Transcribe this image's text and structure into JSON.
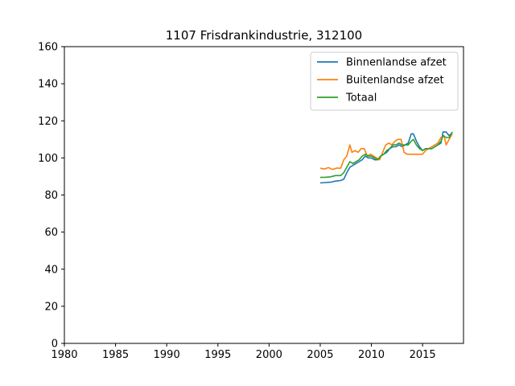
{
  "chart_data": {
    "type": "line",
    "title": "1107 Frisdrankindustrie, 312100",
    "xlabel": "",
    "ylabel": "",
    "xlim": [
      1980,
      2019
    ],
    "ylim": [
      0,
      160
    ],
    "xticks": [
      "1980",
      "1985",
      "1990",
      "1995",
      "2000",
      "2005",
      "2010",
      "2015"
    ],
    "yticks": [
      "0",
      "20",
      "40",
      "60",
      "80",
      "100",
      "120",
      "140",
      "160"
    ],
    "grid": false,
    "legend_position": "top-right",
    "series": [
      {
        "name": "Binnenlandse afzet",
        "color": "#1f77b4",
        "points": [
          [
            2005.0,
            86.5
          ],
          [
            2005.5,
            86.7
          ],
          [
            2006.0,
            86.9
          ],
          [
            2006.5,
            87.5
          ],
          [
            2007.0,
            87.8
          ],
          [
            2007.3,
            88.5
          ],
          [
            2007.6,
            92
          ],
          [
            2007.9,
            95
          ],
          [
            2008.2,
            96
          ],
          [
            2008.5,
            97
          ],
          [
            2008.8,
            98
          ],
          [
            2009.1,
            99
          ],
          [
            2009.4,
            101
          ],
          [
            2009.7,
            100
          ],
          [
            2010.0,
            100
          ],
          [
            2010.3,
            99
          ],
          [
            2010.6,
            99
          ],
          [
            2010.9,
            101
          ],
          [
            2011.2,
            102
          ],
          [
            2011.5,
            103
          ],
          [
            2011.8,
            105
          ],
          [
            2012.1,
            106
          ],
          [
            2012.4,
            106
          ],
          [
            2012.7,
            107
          ],
          [
            2013.0,
            106
          ],
          [
            2013.3,
            107
          ],
          [
            2013.6,
            108
          ],
          [
            2013.9,
            113
          ],
          [
            2014.1,
            113
          ],
          [
            2014.4,
            109
          ],
          [
            2014.7,
            106
          ],
          [
            2015.0,
            104
          ],
          [
            2015.3,
            105
          ],
          [
            2015.6,
            105
          ],
          [
            2015.9,
            105
          ],
          [
            2016.2,
            106
          ],
          [
            2016.5,
            107
          ],
          [
            2016.8,
            108
          ],
          [
            2017.0,
            114
          ],
          [
            2017.3,
            114
          ],
          [
            2017.6,
            112
          ],
          [
            2017.9,
            113.5
          ]
        ]
      },
      {
        "name": "Buitenlandse afzet",
        "color": "#ff7f0e",
        "points": [
          [
            2005.0,
            94.5
          ],
          [
            2005.4,
            94.0
          ],
          [
            2005.8,
            94.8
          ],
          [
            2006.2,
            93.8
          ],
          [
            2006.6,
            94.5
          ],
          [
            2007.0,
            94.5
          ],
          [
            2007.3,
            99
          ],
          [
            2007.6,
            101
          ],
          [
            2007.9,
            107
          ],
          [
            2008.1,
            103
          ],
          [
            2008.4,
            104
          ],
          [
            2008.7,
            103
          ],
          [
            2009.0,
            105
          ],
          [
            2009.3,
            105
          ],
          [
            2009.6,
            101
          ],
          [
            2009.9,
            102
          ],
          [
            2010.2,
            101
          ],
          [
            2010.5,
            100
          ],
          [
            2010.8,
            99
          ],
          [
            2011.1,
            103
          ],
          [
            2011.4,
            107
          ],
          [
            2011.7,
            108
          ],
          [
            2012.0,
            107
          ],
          [
            2012.3,
            109
          ],
          [
            2012.6,
            110
          ],
          [
            2012.9,
            110
          ],
          [
            2013.2,
            103
          ],
          [
            2013.5,
            102
          ],
          [
            2013.8,
            102
          ],
          [
            2014.1,
            102
          ],
          [
            2014.4,
            102
          ],
          [
            2014.7,
            102
          ],
          [
            2015.0,
            102
          ],
          [
            2015.3,
            104
          ],
          [
            2015.6,
            105
          ],
          [
            2015.9,
            106
          ],
          [
            2016.2,
            107
          ],
          [
            2016.5,
            108
          ],
          [
            2016.8,
            111
          ],
          [
            2017.1,
            112
          ],
          [
            2017.3,
            107
          ],
          [
            2017.6,
            110
          ],
          [
            2017.9,
            113
          ]
        ]
      },
      {
        "name": "Totaal",
        "color": "#2ca02c",
        "points": [
          [
            2005.0,
            89.5
          ],
          [
            2005.5,
            89.6
          ],
          [
            2006.0,
            89.8
          ],
          [
            2006.5,
            90.5
          ],
          [
            2007.0,
            90.5
          ],
          [
            2007.3,
            92
          ],
          [
            2007.6,
            95
          ],
          [
            2007.9,
            98
          ],
          [
            2008.2,
            97
          ],
          [
            2008.5,
            98
          ],
          [
            2008.8,
            99
          ],
          [
            2009.1,
            101
          ],
          [
            2009.4,
            102
          ],
          [
            2009.7,
            101
          ],
          [
            2010.0,
            101
          ],
          [
            2010.3,
            100
          ],
          [
            2010.6,
            99
          ],
          [
            2010.9,
            101
          ],
          [
            2011.2,
            102
          ],
          [
            2011.5,
            104
          ],
          [
            2011.8,
            105
          ],
          [
            2012.1,
            107
          ],
          [
            2012.4,
            107
          ],
          [
            2012.7,
            108
          ],
          [
            2013.0,
            107
          ],
          [
            2013.3,
            107
          ],
          [
            2013.6,
            107
          ],
          [
            2013.9,
            109
          ],
          [
            2014.1,
            110
          ],
          [
            2014.4,
            107
          ],
          [
            2014.7,
            105
          ],
          [
            2015.0,
            104
          ],
          [
            2015.3,
            105
          ],
          [
            2015.6,
            105
          ],
          [
            2015.9,
            105
          ],
          [
            2016.2,
            106
          ],
          [
            2016.5,
            107
          ],
          [
            2016.8,
            109
          ],
          [
            2017.0,
            112
          ],
          [
            2017.3,
            111
          ],
          [
            2017.6,
            111
          ],
          [
            2017.9,
            114
          ]
        ]
      }
    ]
  }
}
